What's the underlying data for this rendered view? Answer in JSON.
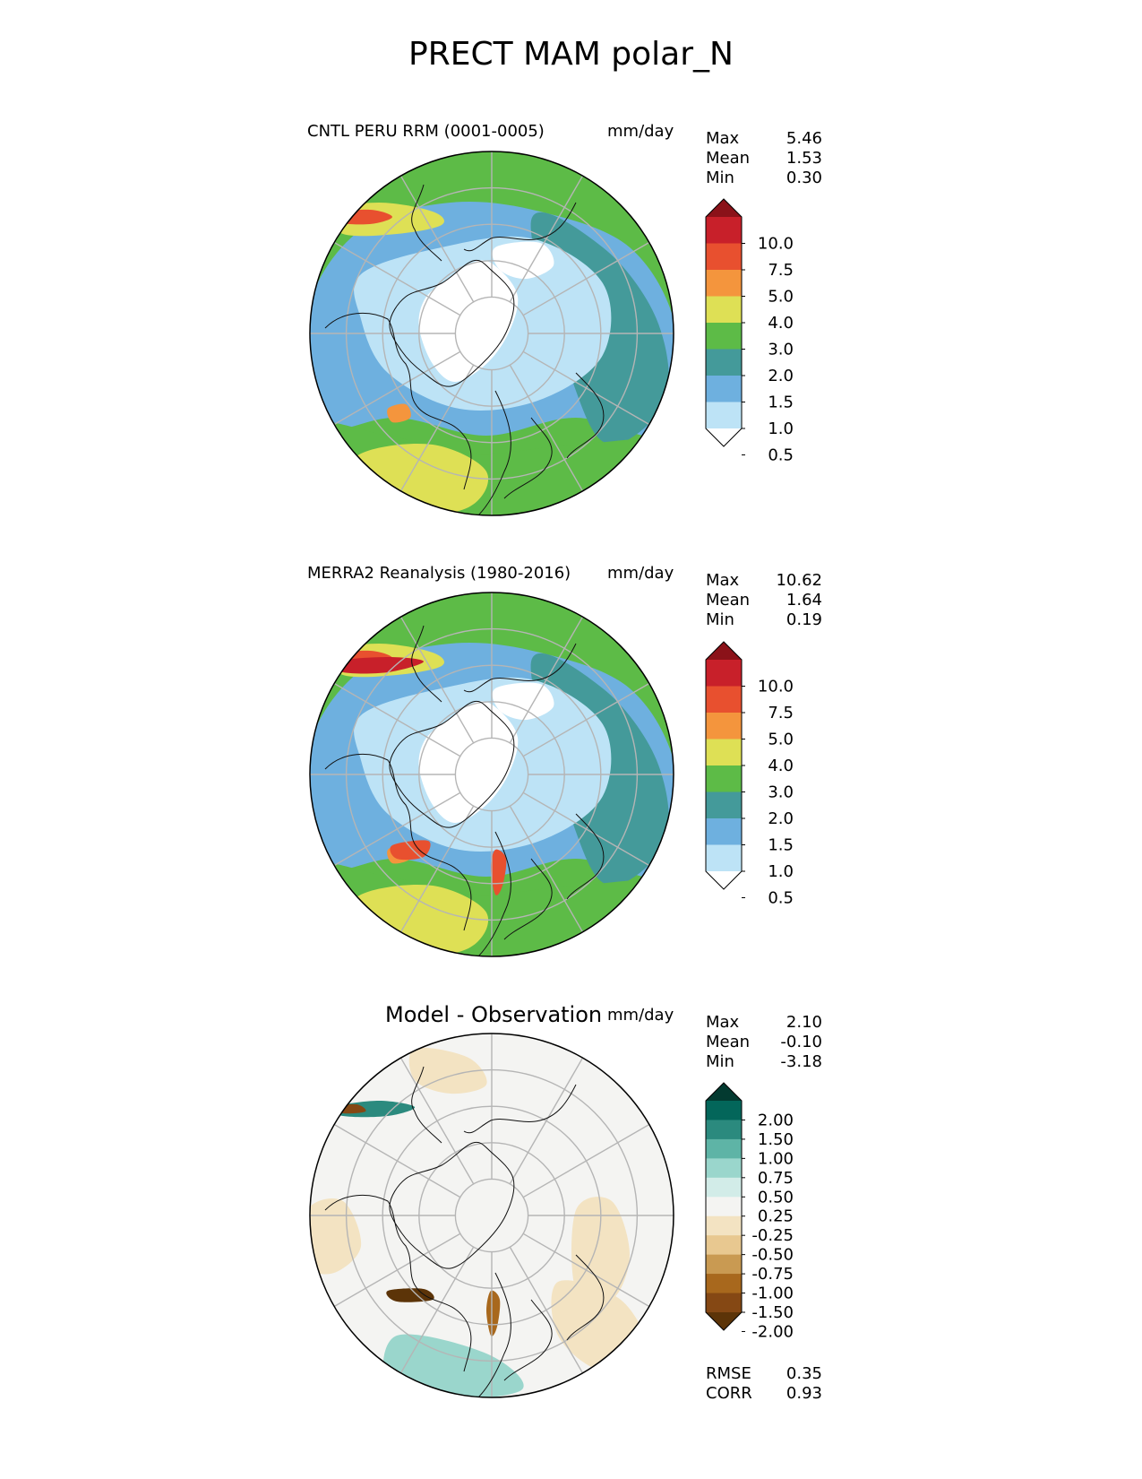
{
  "title": "PRECT MAM polar_N",
  "panels": [
    {
      "title": "CNTL PERU RRM (0001-0005)",
      "units": "mm/day",
      "stats": [
        [
          "Max",
          "5.46"
        ],
        [
          "Mean",
          "1.53"
        ],
        [
          "Min",
          "0.30"
        ]
      ],
      "colorbar": {
        "labels": [
          "10.0",
          "7.5",
          "5.0",
          "4.0",
          "3.0",
          "2.0",
          "1.5",
          "1.0",
          "0.5"
        ],
        "colors": [
          "#8b1219",
          "#c8202a",
          "#e8502f",
          "#f4953d",
          "#dee055",
          "#5dbb47",
          "#449a9a",
          "#6eb0df",
          "#bde3f6",
          "#ffffff"
        ]
      }
    },
    {
      "title": "MERRA2 Reanalysis (1980-2016)",
      "units": "mm/day",
      "stats": [
        [
          "Max",
          "10.62"
        ],
        [
          "Mean",
          "1.64"
        ],
        [
          "Min",
          "0.19"
        ]
      ],
      "colorbar": {
        "labels": [
          "10.0",
          "7.5",
          "5.0",
          "4.0",
          "3.0",
          "2.0",
          "1.5",
          "1.0",
          "0.5"
        ],
        "colors": [
          "#8b1219",
          "#c8202a",
          "#e8502f",
          "#f4953d",
          "#dee055",
          "#5dbb47",
          "#449a9a",
          "#6eb0df",
          "#bde3f6",
          "#ffffff"
        ]
      }
    },
    {
      "title": "Model - Observation",
      "units": "mm/day",
      "stats": [
        [
          "Max",
          "2.10"
        ],
        [
          "Mean",
          "-0.10"
        ],
        [
          "Min",
          "-3.18"
        ]
      ],
      "colorbar": {
        "labels": [
          "2.00",
          "1.50",
          "1.00",
          "0.75",
          "0.50",
          "0.25",
          "-0.25",
          "-0.50",
          "-0.75",
          "-1.00",
          "-1.50",
          "-2.00"
        ],
        "colors": [
          "#033a30",
          "#03665a",
          "#2b8a7e",
          "#5eb4a6",
          "#9ad6cc",
          "#d2ece8",
          "#f4f4f2",
          "#f3e3c2",
          "#e8c890",
          "#c99a52",
          "#a8681d",
          "#854814",
          "#5c3408"
        ]
      },
      "metrics": [
        [
          "RMSE",
          "0.35"
        ],
        [
          "CORR",
          "0.93"
        ]
      ]
    }
  ]
}
